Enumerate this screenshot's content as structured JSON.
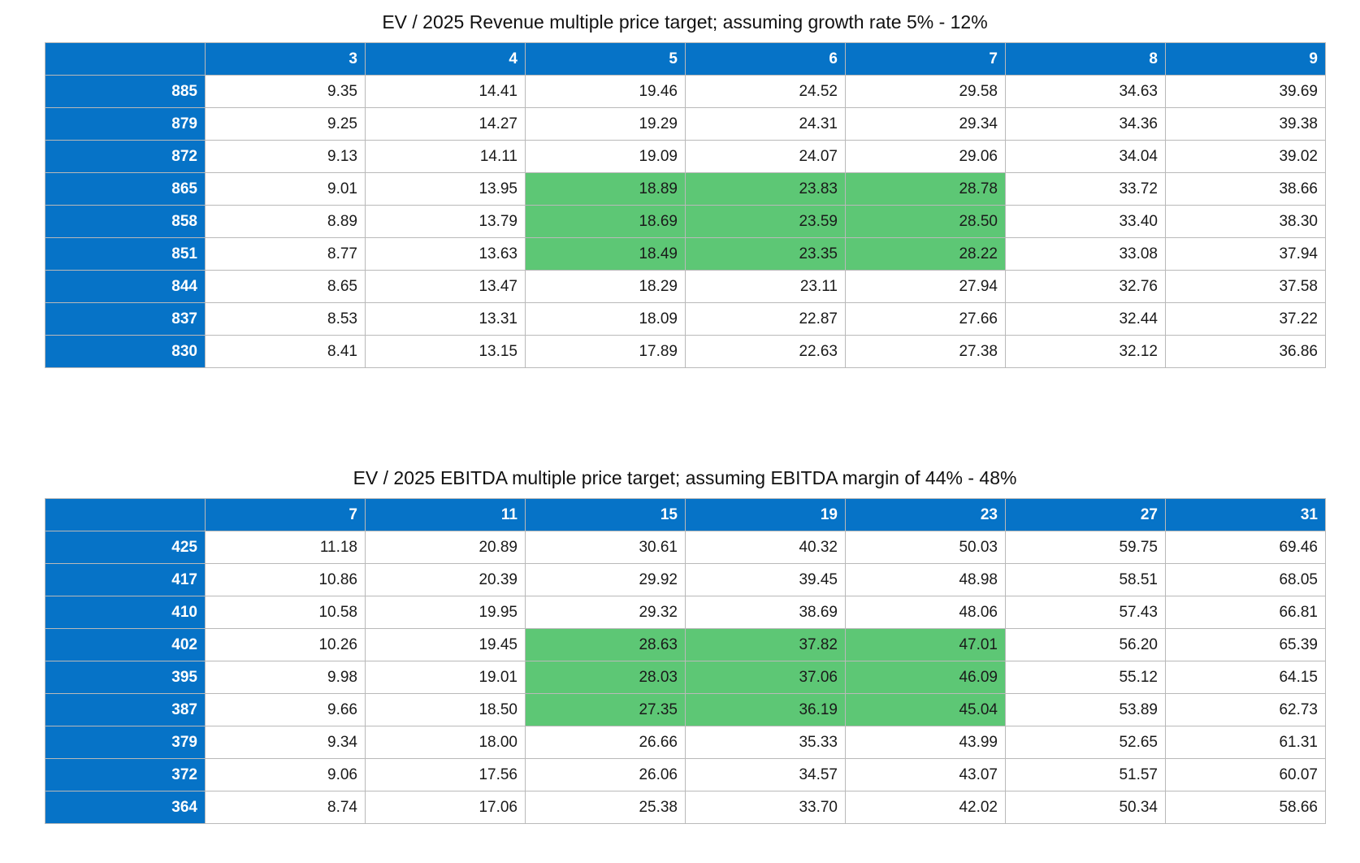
{
  "colors": {
    "header_blue": "#0673c7",
    "highlight_green": "#5dc775",
    "cell_bg": "#ffffff"
  },
  "chart_data": [
    {
      "type": "table",
      "title": "EV / 2025 Revenue multiple price target; assuming growth rate 5% - 12%",
      "columns": [
        "3",
        "4",
        "5",
        "6",
        "7",
        "8",
        "9"
      ],
      "rows": [
        {
          "label": "885",
          "values": [
            "9.35",
            "14.41",
            "19.46",
            "24.52",
            "29.58",
            "34.63",
            "39.69"
          ]
        },
        {
          "label": "879",
          "values": [
            "9.25",
            "14.27",
            "19.29",
            "24.31",
            "29.34",
            "34.36",
            "39.38"
          ]
        },
        {
          "label": "872",
          "values": [
            "9.13",
            "14.11",
            "19.09",
            "24.07",
            "29.06",
            "34.04",
            "39.02"
          ]
        },
        {
          "label": "865",
          "values": [
            "9.01",
            "13.95",
            "18.89",
            "23.83",
            "28.78",
            "33.72",
            "38.66"
          ]
        },
        {
          "label": "858",
          "values": [
            "8.89",
            "13.79",
            "18.69",
            "23.59",
            "28.50",
            "33.40",
            "38.30"
          ]
        },
        {
          "label": "851",
          "values": [
            "8.77",
            "13.63",
            "18.49",
            "23.35",
            "28.22",
            "33.08",
            "37.94"
          ]
        },
        {
          "label": "844",
          "values": [
            "8.65",
            "13.47",
            "18.29",
            "23.11",
            "27.94",
            "32.76",
            "37.58"
          ]
        },
        {
          "label": "837",
          "values": [
            "8.53",
            "13.31",
            "18.09",
            "22.87",
            "27.66",
            "32.44",
            "37.22"
          ]
        },
        {
          "label": "830",
          "values": [
            "8.41",
            "13.15",
            "17.89",
            "22.63",
            "27.38",
            "32.12",
            "36.86"
          ]
        }
      ],
      "highlight": {
        "rows": [
          "865",
          "858",
          "851"
        ],
        "columns": [
          "5",
          "6",
          "7"
        ]
      }
    },
    {
      "type": "table",
      "title": "EV / 2025 EBITDA multiple price target; assuming EBITDA margin of 44% - 48%",
      "columns": [
        "7",
        "11",
        "15",
        "19",
        "23",
        "27",
        "31"
      ],
      "rows": [
        {
          "label": "425",
          "values": [
            "11.18",
            "20.89",
            "30.61",
            "40.32",
            "50.03",
            "59.75",
            "69.46"
          ]
        },
        {
          "label": "417",
          "values": [
            "10.86",
            "20.39",
            "29.92",
            "39.45",
            "48.98",
            "58.51",
            "68.05"
          ]
        },
        {
          "label": "410",
          "values": [
            "10.58",
            "19.95",
            "29.32",
            "38.69",
            "48.06",
            "57.43",
            "66.81"
          ]
        },
        {
          "label": "402",
          "values": [
            "10.26",
            "19.45",
            "28.63",
            "37.82",
            "47.01",
            "56.20",
            "65.39"
          ]
        },
        {
          "label": "395",
          "values": [
            "9.98",
            "19.01",
            "28.03",
            "37.06",
            "46.09",
            "55.12",
            "64.15"
          ]
        },
        {
          "label": "387",
          "values": [
            "9.66",
            "18.50",
            "27.35",
            "36.19",
            "45.04",
            "53.89",
            "62.73"
          ]
        },
        {
          "label": "379",
          "values": [
            "9.34",
            "18.00",
            "26.66",
            "35.33",
            "43.99",
            "52.65",
            "61.31"
          ]
        },
        {
          "label": "372",
          "values": [
            "9.06",
            "17.56",
            "26.06",
            "34.57",
            "43.07",
            "51.57",
            "60.07"
          ]
        },
        {
          "label": "364",
          "values": [
            "8.74",
            "17.06",
            "25.38",
            "33.70",
            "42.02",
            "50.34",
            "58.66"
          ]
        }
      ],
      "highlight": {
        "rows": [
          "402",
          "395",
          "387"
        ],
        "columns": [
          "15",
          "19",
          "23"
        ]
      }
    }
  ]
}
